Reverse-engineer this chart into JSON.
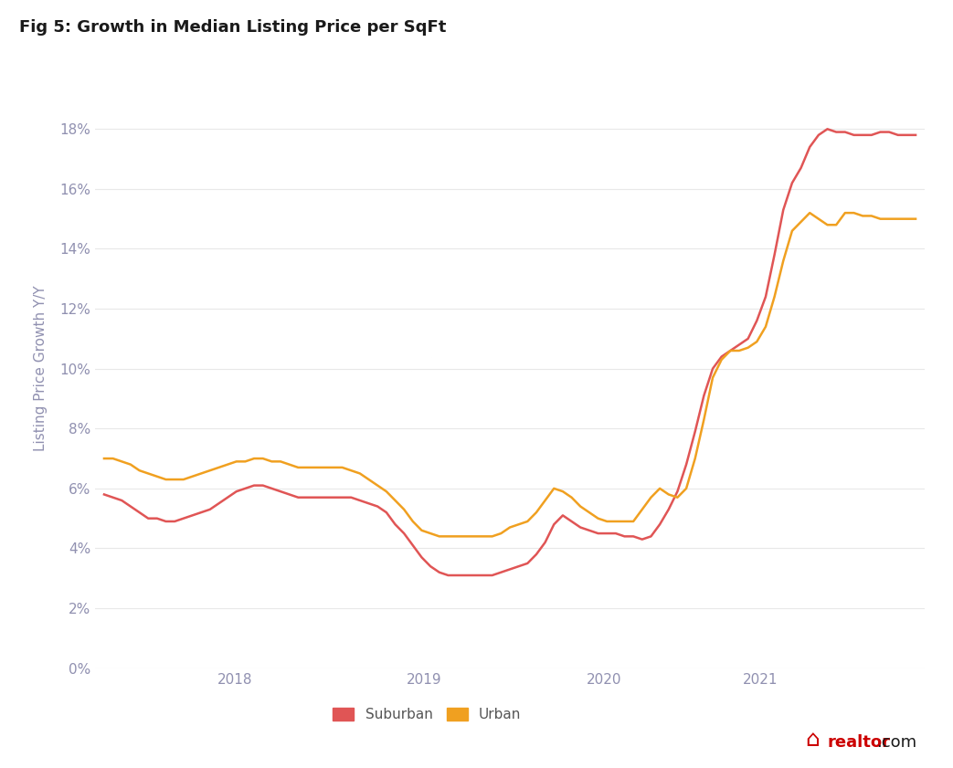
{
  "title": "Fig 5: Growth in Median Listing Price per SqFt",
  "ylabel": "Listing Price Growth Y/Y",
  "title_color": "#1a1a1a",
  "axis_label_color": "#9090b0",
  "grid_color": "#e8e8e8",
  "background_color": "#ffffff",
  "suburban_color": "#e05555",
  "urban_color": "#f0a020",
  "ylim": [
    0.0,
    0.2
  ],
  "yticks": [
    0.0,
    0.02,
    0.04,
    0.06,
    0.08,
    0.1,
    0.12,
    0.14,
    0.16,
    0.18
  ],
  "legend_labels": [
    "Suburban",
    "Urban"
  ],
  "suburban": [
    0.058,
    0.057,
    0.056,
    0.054,
    0.052,
    0.05,
    0.05,
    0.049,
    0.049,
    0.05,
    0.051,
    0.052,
    0.053,
    0.055,
    0.057,
    0.059,
    0.06,
    0.061,
    0.061,
    0.06,
    0.059,
    0.058,
    0.057,
    0.057,
    0.057,
    0.057,
    0.057,
    0.057,
    0.057,
    0.056,
    0.055,
    0.054,
    0.052,
    0.048,
    0.045,
    0.041,
    0.037,
    0.034,
    0.032,
    0.031,
    0.031,
    0.031,
    0.031,
    0.031,
    0.031,
    0.032,
    0.033,
    0.034,
    0.035,
    0.038,
    0.042,
    0.048,
    0.051,
    0.049,
    0.047,
    0.046,
    0.045,
    0.045,
    0.045,
    0.044,
    0.044,
    0.043,
    0.044,
    0.048,
    0.053,
    0.059,
    0.068,
    0.079,
    0.091,
    0.1,
    0.104,
    0.106,
    0.108,
    0.11,
    0.116,
    0.124,
    0.138,
    0.153,
    0.162,
    0.167,
    0.174,
    0.178,
    0.18,
    0.179,
    0.179,
    0.178,
    0.178,
    0.178,
    0.179,
    0.179,
    0.178,
    0.178,
    0.178
  ],
  "urban": [
    0.07,
    0.07,
    0.069,
    0.068,
    0.066,
    0.065,
    0.064,
    0.063,
    0.063,
    0.063,
    0.064,
    0.065,
    0.066,
    0.067,
    0.068,
    0.069,
    0.069,
    0.07,
    0.07,
    0.069,
    0.069,
    0.068,
    0.067,
    0.067,
    0.067,
    0.067,
    0.067,
    0.067,
    0.066,
    0.065,
    0.063,
    0.061,
    0.059,
    0.056,
    0.053,
    0.049,
    0.046,
    0.045,
    0.044,
    0.044,
    0.044,
    0.044,
    0.044,
    0.044,
    0.044,
    0.045,
    0.047,
    0.048,
    0.049,
    0.052,
    0.056,
    0.06,
    0.059,
    0.057,
    0.054,
    0.052,
    0.05,
    0.049,
    0.049,
    0.049,
    0.049,
    0.053,
    0.057,
    0.06,
    0.058,
    0.057,
    0.06,
    0.07,
    0.083,
    0.097,
    0.103,
    0.106,
    0.106,
    0.107,
    0.109,
    0.114,
    0.124,
    0.136,
    0.146,
    0.149,
    0.152,
    0.15,
    0.148,
    0.148,
    0.152,
    0.152,
    0.151,
    0.151,
    0.15,
    0.15,
    0.15,
    0.15,
    0.15
  ],
  "n_points": 93,
  "year_tick_months": [
    6,
    18,
    30,
    42,
    54,
    66,
    78,
    90
  ],
  "year_tick_labels": [
    "",
    "2018",
    "",
    "2019",
    "",
    "2020",
    "",
    "2021"
  ],
  "start_month": 7,
  "start_year": 2017
}
